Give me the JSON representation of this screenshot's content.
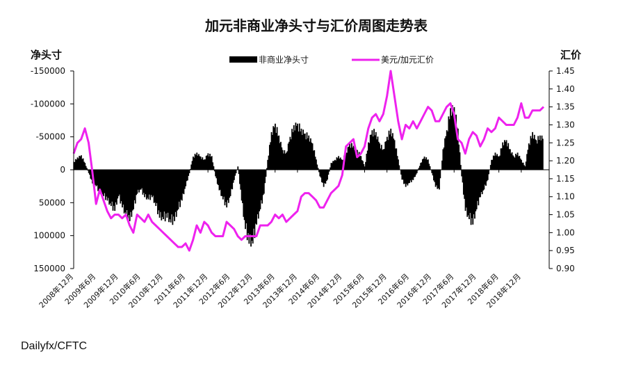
{
  "chart_data": {
    "type": "bar+line",
    "title": "加元非商业净头寸与汇价周图走势表",
    "left_axis_label": "净头寸",
    "right_axis_label": "汇价",
    "source": "Dailyfx/CFTC",
    "legend_position": "top",
    "colors": {
      "bars": "#000000",
      "line": "#ee22ee"
    },
    "left_axis": {
      "min": -150000,
      "max": 150000,
      "inverted": true,
      "ticks": [
        -150000,
        -100000,
        -50000,
        0,
        50000,
        100000,
        150000
      ],
      "tick_labels": [
        "-150000",
        "-100000",
        "-50000",
        "0",
        "50000",
        "100000",
        "150000"
      ]
    },
    "right_axis": {
      "min": 0.9,
      "max": 1.45,
      "ticks": [
        0.9,
        0.95,
        1.0,
        1.05,
        1.1,
        1.15,
        1.2,
        1.25,
        1.3,
        1.35,
        1.4,
        1.45
      ],
      "tick_labels": [
        "0.90",
        "0.95",
        "1.00",
        "1.05",
        "1.10",
        "1.15",
        "1.20",
        "1.25",
        "1.30",
        "1.35",
        "1.40",
        "1.45"
      ]
    },
    "x_range": [
      "2008-12",
      "2019-06"
    ],
    "x_tick_dates": [
      "2008-12",
      "2009-06",
      "2009-12",
      "2010-06",
      "2010-12",
      "2011-06",
      "2011-12",
      "2012-06",
      "2012-12",
      "2013-06",
      "2013-12",
      "2014-06",
      "2014-12",
      "2015-06",
      "2015-12",
      "2016-06",
      "2016-12",
      "2017-06",
      "2017-12",
      "2018-06",
      "2018-12"
    ],
    "x_tick_labels": [
      "2008年12月",
      "2009年6月",
      "2009年12月",
      "2010年6月",
      "2010年12月",
      "2011年6月",
      "2011年12月",
      "2012年6月",
      "2012年12月",
      "2013年6月",
      "2013年12月",
      "2014年6月",
      "2014年12月",
      "2015年6月",
      "2015年12月",
      "2016年6月",
      "2016年12月",
      "2017年6月",
      "2017年12月",
      "2018年6月",
      "2018年12月"
    ],
    "series": [
      {
        "name": "非商业净头寸",
        "kind": "bar",
        "axis": "left",
        "points": [
          [
            "2008-12",
            -12000
          ],
          [
            "2009-01",
            -18000
          ],
          [
            "2009-02",
            -22000
          ],
          [
            "2009-03",
            -10000
          ],
          [
            "2009-04",
            5000
          ],
          [
            "2009-05",
            20000
          ],
          [
            "2009-06",
            25000
          ],
          [
            "2009-07",
            35000
          ],
          [
            "2009-08",
            40000
          ],
          [
            "2009-09",
            45000
          ],
          [
            "2009-10",
            55000
          ],
          [
            "2009-11",
            60000
          ],
          [
            "2009-12",
            40000
          ],
          [
            "2010-01",
            55000
          ],
          [
            "2010-02",
            70000
          ],
          [
            "2010-03",
            75000
          ],
          [
            "2010-04",
            60000
          ],
          [
            "2010-05",
            35000
          ],
          [
            "2010-06",
            30000
          ],
          [
            "2010-07",
            40000
          ],
          [
            "2010-08",
            45000
          ],
          [
            "2010-09",
            40000
          ],
          [
            "2010-10",
            55000
          ],
          [
            "2010-11",
            70000
          ],
          [
            "2010-12",
            75000
          ],
          [
            "2011-01",
            70000
          ],
          [
            "2011-02",
            80000
          ],
          [
            "2011-03",
            75000
          ],
          [
            "2011-04",
            60000
          ],
          [
            "2011-05",
            45000
          ],
          [
            "2011-06",
            25000
          ],
          [
            "2011-07",
            5000
          ],
          [
            "2011-08",
            -20000
          ],
          [
            "2011-09",
            -25000
          ],
          [
            "2011-10",
            -20000
          ],
          [
            "2011-11",
            -15000
          ],
          [
            "2011-12",
            -25000
          ],
          [
            "2012-01",
            -20000
          ],
          [
            "2012-02",
            10000
          ],
          [
            "2012-03",
            30000
          ],
          [
            "2012-04",
            45000
          ],
          [
            "2012-05",
            55000
          ],
          [
            "2012-06",
            40000
          ],
          [
            "2012-07",
            15000
          ],
          [
            "2012-08",
            -5000
          ],
          [
            "2012-09",
            45000
          ],
          [
            "2012-10",
            90000
          ],
          [
            "2012-11",
            108000
          ],
          [
            "2012-12",
            112000
          ],
          [
            "2013-01",
            80000
          ],
          [
            "2013-02",
            60000
          ],
          [
            "2013-03",
            35000
          ],
          [
            "2013-04",
            -15000
          ],
          [
            "2013-05",
            -55000
          ],
          [
            "2013-06",
            -70000
          ],
          [
            "2013-07",
            -50000
          ],
          [
            "2013-08",
            -30000
          ],
          [
            "2013-09",
            -25000
          ],
          [
            "2013-10",
            -50000
          ],
          [
            "2013-11",
            -65000
          ],
          [
            "2013-12",
            -70000
          ],
          [
            "2014-01",
            -60000
          ],
          [
            "2014-02",
            -55000
          ],
          [
            "2014-03",
            -50000
          ],
          [
            "2014-04",
            -40000
          ],
          [
            "2014-05",
            -15000
          ],
          [
            "2014-06",
            10000
          ],
          [
            "2014-07",
            25000
          ],
          [
            "2014-08",
            15000
          ],
          [
            "2014-09",
            -10000
          ],
          [
            "2014-10",
            -15000
          ],
          [
            "2014-11",
            -20000
          ],
          [
            "2014-12",
            -15000
          ],
          [
            "2015-01",
            -25000
          ],
          [
            "2015-02",
            -40000
          ],
          [
            "2015-03",
            -35000
          ],
          [
            "2015-04",
            -30000
          ],
          [
            "2015-05",
            -20000
          ],
          [
            "2015-06",
            -5000
          ],
          [
            "2015-07",
            -40000
          ],
          [
            "2015-08",
            -60000
          ],
          [
            "2015-09",
            -55000
          ],
          [
            "2015-10",
            -40000
          ],
          [
            "2015-11",
            -30000
          ],
          [
            "2015-12",
            -50000
          ],
          [
            "2016-01",
            -60000
          ],
          [
            "2016-02",
            -45000
          ],
          [
            "2016-03",
            -15000
          ],
          [
            "2016-04",
            15000
          ],
          [
            "2016-05",
            25000
          ],
          [
            "2016-06",
            20000
          ],
          [
            "2016-07",
            15000
          ],
          [
            "2016-08",
            5000
          ],
          [
            "2016-09",
            -10000
          ],
          [
            "2016-10",
            -20000
          ],
          [
            "2016-11",
            -15000
          ],
          [
            "2016-12",
            5000
          ],
          [
            "2017-01",
            25000
          ],
          [
            "2017-02",
            30000
          ],
          [
            "2017-03",
            -30000
          ],
          [
            "2017-04",
            -60000
          ],
          [
            "2017-05",
            -90000
          ],
          [
            "2017-06",
            -95000
          ],
          [
            "2017-07",
            -60000
          ],
          [
            "2017-08",
            10000
          ],
          [
            "2017-09",
            60000
          ],
          [
            "2017-10",
            75000
          ],
          [
            "2017-11",
            80000
          ],
          [
            "2017-12",
            60000
          ],
          [
            "2018-01",
            40000
          ],
          [
            "2018-02",
            30000
          ],
          [
            "2018-03",
            15000
          ],
          [
            "2018-04",
            -15000
          ],
          [
            "2018-05",
            -25000
          ],
          [
            "2018-06",
            -20000
          ],
          [
            "2018-07",
            -40000
          ],
          [
            "2018-08",
            -45000
          ],
          [
            "2018-09",
            -30000
          ],
          [
            "2018-10",
            -20000
          ],
          [
            "2018-11",
            -25000
          ],
          [
            "2018-12",
            -15000
          ],
          [
            "2019-01",
            -5000
          ],
          [
            "2019-02",
            -40000
          ],
          [
            "2019-03",
            -55000
          ],
          [
            "2019-04",
            -45000
          ],
          [
            "2019-05",
            -50000
          ],
          [
            "2019-06",
            -48000
          ]
        ]
      },
      {
        "name": "美元/加元汇价",
        "kind": "line",
        "axis": "right",
        "points": [
          [
            "2008-12",
            1.22
          ],
          [
            "2009-01",
            1.25
          ],
          [
            "2009-02",
            1.26
          ],
          [
            "2009-03",
            1.29
          ],
          [
            "2009-04",
            1.25
          ],
          [
            "2009-05",
            1.17
          ],
          [
            "2009-06",
            1.08
          ],
          [
            "2009-07",
            1.12
          ],
          [
            "2009-08",
            1.09
          ],
          [
            "2009-09",
            1.06
          ],
          [
            "2009-10",
            1.04
          ],
          [
            "2009-11",
            1.05
          ],
          [
            "2009-12",
            1.05
          ],
          [
            "2010-01",
            1.04
          ],
          [
            "2010-02",
            1.05
          ],
          [
            "2010-03",
            1.02
          ],
          [
            "2010-04",
            1.0
          ],
          [
            "2010-05",
            1.05
          ],
          [
            "2010-06",
            1.04
          ],
          [
            "2010-07",
            1.03
          ],
          [
            "2010-08",
            1.05
          ],
          [
            "2010-09",
            1.03
          ],
          [
            "2010-10",
            1.02
          ],
          [
            "2010-11",
            1.01
          ],
          [
            "2010-12",
            1.0
          ],
          [
            "2011-01",
            0.99
          ],
          [
            "2011-02",
            0.98
          ],
          [
            "2011-03",
            0.97
          ],
          [
            "2011-04",
            0.96
          ],
          [
            "2011-05",
            0.96
          ],
          [
            "2011-06",
            0.97
          ],
          [
            "2011-07",
            0.95
          ],
          [
            "2011-08",
            0.98
          ],
          [
            "2011-09",
            1.02
          ],
          [
            "2011-10",
            1.0
          ],
          [
            "2011-11",
            1.03
          ],
          [
            "2011-12",
            1.02
          ],
          [
            "2012-01",
            1.0
          ],
          [
            "2012-02",
            0.99
          ],
          [
            "2012-03",
            0.99
          ],
          [
            "2012-04",
            0.99
          ],
          [
            "2012-05",
            1.03
          ],
          [
            "2012-06",
            1.02
          ],
          [
            "2012-07",
            1.01
          ],
          [
            "2012-08",
            0.99
          ],
          [
            "2012-09",
            0.98
          ],
          [
            "2012-10",
            0.99
          ],
          [
            "2012-11",
            0.99
          ],
          [
            "2012-12",
            0.99
          ],
          [
            "2013-01",
            0.99
          ],
          [
            "2013-02",
            1.02
          ],
          [
            "2013-03",
            1.02
          ],
          [
            "2013-04",
            1.02
          ],
          [
            "2013-05",
            1.03
          ],
          [
            "2013-06",
            1.05
          ],
          [
            "2013-07",
            1.04
          ],
          [
            "2013-08",
            1.05
          ],
          [
            "2013-09",
            1.03
          ],
          [
            "2013-10",
            1.04
          ],
          [
            "2013-11",
            1.05
          ],
          [
            "2013-12",
            1.06
          ],
          [
            "2014-01",
            1.1
          ],
          [
            "2014-02",
            1.11
          ],
          [
            "2014-03",
            1.11
          ],
          [
            "2014-04",
            1.1
          ],
          [
            "2014-05",
            1.09
          ],
          [
            "2014-06",
            1.07
          ],
          [
            "2014-07",
            1.07
          ],
          [
            "2014-08",
            1.09
          ],
          [
            "2014-09",
            1.11
          ],
          [
            "2014-10",
            1.12
          ],
          [
            "2014-11",
            1.13
          ],
          [
            "2014-12",
            1.16
          ],
          [
            "2015-01",
            1.24
          ],
          [
            "2015-02",
            1.25
          ],
          [
            "2015-03",
            1.26
          ],
          [
            "2015-04",
            1.21
          ],
          [
            "2015-05",
            1.22
          ],
          [
            "2015-06",
            1.24
          ],
          [
            "2015-07",
            1.29
          ],
          [
            "2015-08",
            1.32
          ],
          [
            "2015-09",
            1.33
          ],
          [
            "2015-10",
            1.31
          ],
          [
            "2015-11",
            1.33
          ],
          [
            "2015-12",
            1.38
          ],
          [
            "2016-01",
            1.45
          ],
          [
            "2016-02",
            1.38
          ],
          [
            "2016-03",
            1.31
          ],
          [
            "2016-04",
            1.26
          ],
          [
            "2016-05",
            1.3
          ],
          [
            "2016-06",
            1.29
          ],
          [
            "2016-07",
            1.31
          ],
          [
            "2016-08",
            1.29
          ],
          [
            "2016-09",
            1.31
          ],
          [
            "2016-10",
            1.33
          ],
          [
            "2016-11",
            1.35
          ],
          [
            "2016-12",
            1.34
          ],
          [
            "2017-01",
            1.31
          ],
          [
            "2017-02",
            1.31
          ],
          [
            "2017-03",
            1.33
          ],
          [
            "2017-04",
            1.35
          ],
          [
            "2017-05",
            1.36
          ],
          [
            "2017-06",
            1.33
          ],
          [
            "2017-07",
            1.26
          ],
          [
            "2017-08",
            1.25
          ],
          [
            "2017-09",
            1.22
          ],
          [
            "2017-10",
            1.26
          ],
          [
            "2017-11",
            1.28
          ],
          [
            "2017-12",
            1.27
          ],
          [
            "2018-01",
            1.24
          ],
          [
            "2018-02",
            1.26
          ],
          [
            "2018-03",
            1.29
          ],
          [
            "2018-04",
            1.28
          ],
          [
            "2018-05",
            1.29
          ],
          [
            "2018-06",
            1.32
          ],
          [
            "2018-07",
            1.31
          ],
          [
            "2018-08",
            1.3
          ],
          [
            "2018-09",
            1.3
          ],
          [
            "2018-10",
            1.3
          ],
          [
            "2018-11",
            1.32
          ],
          [
            "2018-12",
            1.36
          ],
          [
            "2019-01",
            1.32
          ],
          [
            "2019-02",
            1.32
          ],
          [
            "2019-03",
            1.34
          ],
          [
            "2019-04",
            1.34
          ],
          [
            "2019-05",
            1.34
          ],
          [
            "2019-06",
            1.35
          ]
        ]
      }
    ]
  }
}
